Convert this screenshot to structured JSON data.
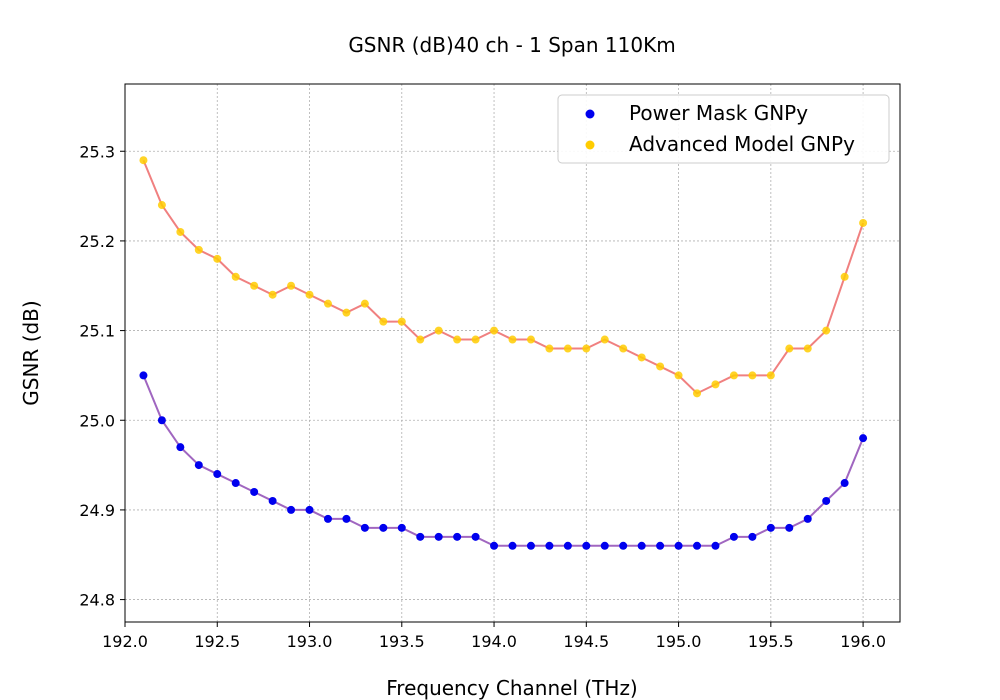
{
  "chart_data": {
    "type": "scatter",
    "title": "GSNR (dB)40 ch - 1 Span 110Km",
    "xlabel": "Frequency Channel (THz)",
    "ylabel": "GSNR (dB)",
    "xlim": [
      192.0,
      196.2
    ],
    "ylim": [
      24.775,
      25.375
    ],
    "xticks": [
      192.0,
      192.5,
      193.0,
      193.5,
      194.0,
      194.5,
      195.0,
      195.5,
      196.0
    ],
    "xtick_labels": [
      "192.0",
      "192.5",
      "193.0",
      "193.5",
      "194.0",
      "194.5",
      "195.0",
      "195.5",
      "196.0"
    ],
    "yticks": [
      24.8,
      24.9,
      25.0,
      25.1,
      25.2,
      25.3
    ],
    "ytick_labels": [
      "24.8",
      "24.9",
      "25.0",
      "25.1",
      "25.2",
      "25.3"
    ],
    "grid": true,
    "legend_position": "top-right",
    "x": [
      192.1,
      192.2,
      192.3,
      192.4,
      192.5,
      192.6,
      192.7,
      192.8,
      192.9,
      193.0,
      193.1,
      193.2,
      193.3,
      193.4,
      193.5,
      193.6,
      193.7,
      193.8,
      193.9,
      194.0,
      194.1,
      194.2,
      194.3,
      194.4,
      194.5,
      194.6,
      194.7,
      194.8,
      194.9,
      195.0,
      195.1,
      195.2,
      195.3,
      195.4,
      195.5,
      195.6,
      195.7,
      195.8,
      195.9,
      196.0
    ],
    "series": [
      {
        "name": "Power Mask GNPy",
        "marker_color": "#0000ee",
        "line_color": "#a066c0",
        "values": [
          25.05,
          25.0,
          24.97,
          24.95,
          24.94,
          24.93,
          24.92,
          24.91,
          24.9,
          24.9,
          24.89,
          24.89,
          24.88,
          24.88,
          24.88,
          24.87,
          24.87,
          24.87,
          24.87,
          24.86,
          24.86,
          24.86,
          24.86,
          24.86,
          24.86,
          24.86,
          24.86,
          24.86,
          24.86,
          24.86,
          24.86,
          24.86,
          24.87,
          24.87,
          24.88,
          24.88,
          24.89,
          24.91,
          24.93,
          24.98
        ]
      },
      {
        "name": "Advanced Model GNPy",
        "marker_color": "#ffcc00",
        "line_color": "#f08080",
        "values": [
          25.29,
          25.24,
          25.21,
          25.19,
          25.18,
          25.16,
          25.15,
          25.14,
          25.15,
          25.14,
          25.13,
          25.12,
          25.13,
          25.11,
          25.11,
          25.09,
          25.1,
          25.09,
          25.09,
          25.1,
          25.09,
          25.09,
          25.08,
          25.08,
          25.08,
          25.09,
          25.08,
          25.07,
          25.06,
          25.05,
          25.03,
          25.04,
          25.05,
          25.05,
          25.05,
          25.08,
          25.08,
          25.1,
          25.16,
          25.22
        ]
      }
    ]
  }
}
